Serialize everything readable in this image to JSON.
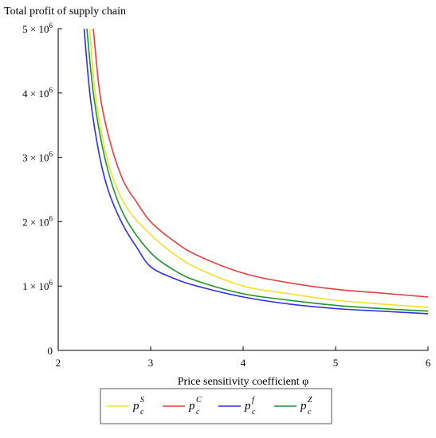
{
  "chart_data": {
    "type": "line",
    "ylabel": "Total profit of supply chain",
    "xlabel": "Price sensitivity coefficient φ",
    "xlim": [
      2,
      6
    ],
    "ylim": [
      0,
      5000000
    ],
    "x_ticks": [
      {
        "value": 2,
        "label": "2"
      },
      {
        "value": 3,
        "label": "3"
      },
      {
        "value": 4,
        "label": "4"
      },
      {
        "value": 5,
        "label": "5"
      },
      {
        "value": 6,
        "label": "6"
      }
    ],
    "y_ticks": [
      {
        "value": 0,
        "mant": "0",
        "exp": ""
      },
      {
        "value": 1000000,
        "mant": "1 × 10",
        "exp": "6"
      },
      {
        "value": 2000000,
        "mant": "2 × 10",
        "exp": "6"
      },
      {
        "value": 3000000,
        "mant": "3 × 10",
        "exp": "6"
      },
      {
        "value": 4000000,
        "mant": "4 × 10",
        "exp": "6"
      },
      {
        "value": 5000000,
        "mant": "5 × 10",
        "exp": "6"
      }
    ],
    "legend_position": "bottom",
    "series": [
      {
        "name_base": "p",
        "name_sub": "c",
        "name_sup": "S",
        "color": "#f0e030",
        "x": [
          2.34,
          2.4,
          2.5,
          2.6,
          2.75,
          3.0,
          3.25,
          3.5,
          4.0,
          4.5,
          5.0,
          5.5,
          6.0
        ],
        "y": [
          5000000,
          4000000,
          3150000,
          2650000,
          2200000,
          1800000,
          1500000,
          1280000,
          1000000,
          880000,
          780000,
          720000,
          670000
        ]
      },
      {
        "name_base": "p",
        "name_sub": "c",
        "name_sup": "C",
        "color": "#e04040",
        "x": [
          2.38,
          2.45,
          2.55,
          2.7,
          2.85,
          3.0,
          3.25,
          3.5,
          4.0,
          4.5,
          5.0,
          5.5,
          6.0
        ],
        "y": [
          5000000,
          4000000,
          3300000,
          2650000,
          2300000,
          2000000,
          1700000,
          1480000,
          1200000,
          1050000,
          950000,
          890000,
          830000
        ]
      },
      {
        "name_base": "p",
        "name_sub": "c",
        "name_sup": "f",
        "color": "#3030e0",
        "x": [
          2.28,
          2.35,
          2.45,
          2.55,
          2.7,
          2.85,
          3.0,
          3.25,
          3.5,
          4.0,
          4.5,
          5.0,
          5.5,
          6.0
        ],
        "y": [
          5000000,
          3900000,
          3000000,
          2450000,
          1950000,
          1600000,
          1300000,
          1120000,
          1000000,
          830000,
          720000,
          650000,
          610000,
          570000
        ]
      },
      {
        "name_base": "p",
        "name_sub": "c",
        "name_sup": "Z",
        "color": "#209030",
        "x": [
          2.31,
          2.38,
          2.48,
          2.6,
          2.75,
          3.0,
          3.25,
          3.5,
          4.0,
          4.5,
          5.0,
          5.5,
          6.0
        ],
        "y": [
          5000000,
          4000000,
          3150000,
          2500000,
          2000000,
          1520000,
          1250000,
          1080000,
          880000,
          780000,
          700000,
          650000,
          610000
        ]
      }
    ]
  }
}
